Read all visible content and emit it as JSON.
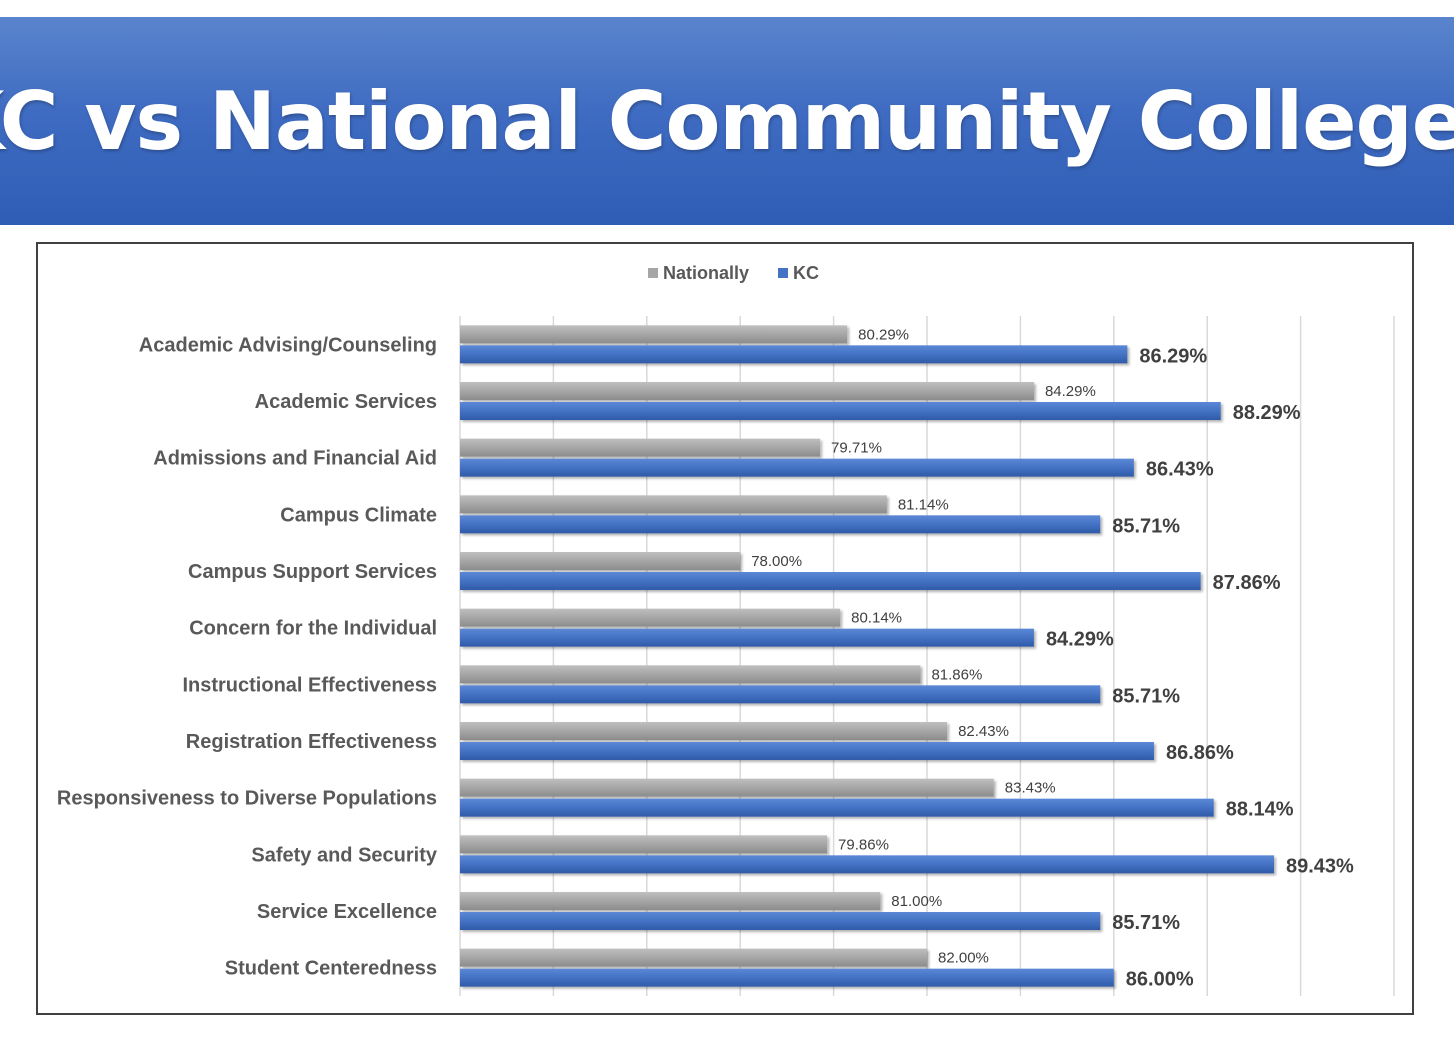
{
  "title": "KC vs National Community Colleges",
  "colors": {
    "banner": "#3f6cc2",
    "nationally": "#a6a6a6",
    "kc": "#4472c4",
    "gridline": "#d9d9d9"
  },
  "chart_data": {
    "type": "bar",
    "orientation": "horizontal",
    "categories": [
      "Academic Advising/Counseling",
      "Academic Services",
      "Admissions and Financial Aid",
      "Campus Climate",
      "Campus Support Services",
      "Concern for the Individual",
      "Instructional Effectiveness",
      "Registration Effectiveness",
      "Responsiveness to Diverse Populations",
      "Safety and Security",
      "Service Excellence",
      "Student Centeredness"
    ],
    "series": [
      {
        "name": "Nationally",
        "values": [
          80.29,
          84.29,
          79.71,
          81.14,
          78.0,
          80.14,
          81.86,
          82.43,
          83.43,
          79.86,
          81.0,
          82.0
        ],
        "labels": [
          "80.29%",
          "84.29%",
          "79.71%",
          "81.14%",
          "78.00%",
          "80.14%",
          "81.86%",
          "82.43%",
          "83.43%",
          "79.86%",
          "81.00%",
          "82.00%"
        ]
      },
      {
        "name": "KC",
        "values": [
          86.29,
          88.29,
          86.43,
          85.71,
          87.86,
          84.29,
          85.71,
          86.86,
          88.14,
          89.43,
          85.71,
          86.0
        ],
        "labels": [
          "86.29%",
          "88.29%",
          "86.43%",
          "85.71%",
          "87.86%",
          "84.29%",
          "85.71%",
          "86.86%",
          "88.14%",
          "89.43%",
          "85.71%",
          "86.00%"
        ]
      }
    ],
    "xlim": [
      72,
      92
    ],
    "grid": true,
    "legend_position": "top"
  }
}
